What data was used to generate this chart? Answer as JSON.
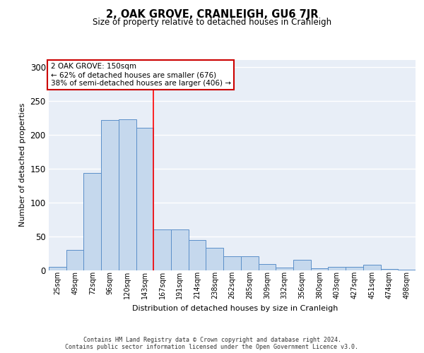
{
  "title": "2, OAK GROVE, CRANLEIGH, GU6 7JR",
  "subtitle": "Size of property relative to detached houses in Cranleigh",
  "xlabel": "Distribution of detached houses by size in Cranleigh",
  "ylabel": "Number of detached properties",
  "categories": [
    "25sqm",
    "49sqm",
    "72sqm",
    "96sqm",
    "120sqm",
    "143sqm",
    "167sqm",
    "191sqm",
    "214sqm",
    "238sqm",
    "262sqm",
    "285sqm",
    "309sqm",
    "332sqm",
    "356sqm",
    "380sqm",
    "403sqm",
    "427sqm",
    "451sqm",
    "474sqm",
    "498sqm"
  ],
  "values": [
    5,
    30,
    143,
    221,
    222,
    210,
    60,
    60,
    44,
    33,
    20,
    20,
    9,
    4,
    15,
    3,
    5,
    5,
    8,
    2,
    1
  ],
  "bar_color": "#c5d8ed",
  "bar_edge_color": "#5b8fc9",
  "bg_color": "#e8eef7",
  "grid_color": "#ffffff",
  "annotation_line1": "2 OAK GROVE: 150sqm",
  "annotation_line2": "← 62% of detached houses are smaller (676)",
  "annotation_line3": "38% of semi-detached houses are larger (406) →",
  "red_line_x": 5.5,
  "ylim": [
    0,
    310
  ],
  "yticks": [
    0,
    50,
    100,
    150,
    200,
    250,
    300
  ],
  "footer_line1": "Contains HM Land Registry data © Crown copyright and database right 2024.",
  "footer_line2": "Contains public sector information licensed under the Open Government Licence v3.0."
}
